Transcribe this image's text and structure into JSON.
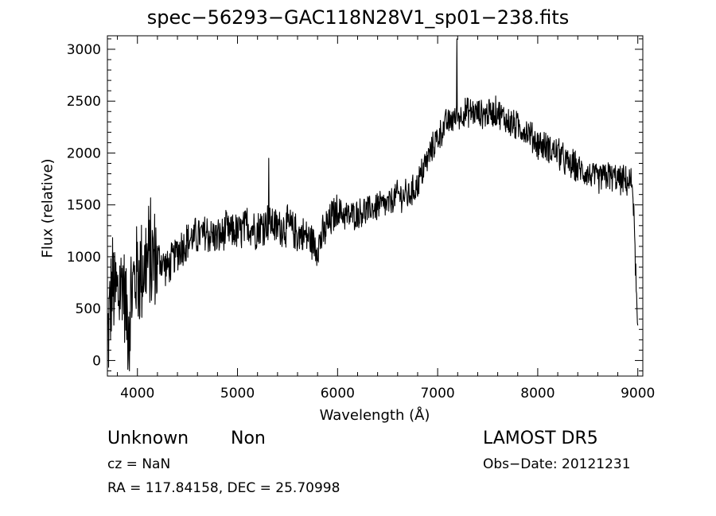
{
  "chart_data": {
    "type": "line",
    "title": "spec−56293−GAC118N28V1_sp01−238.fits",
    "xlabel": "Wavelength (Å)",
    "ylabel": "Flux (relative)",
    "xlim": [
      3700,
      9050
    ],
    "ylim": [
      -150,
      3130
    ],
    "xticks": [
      4000,
      5000,
      6000,
      7000,
      8000,
      9000
    ],
    "xtick_labels": [
      "4000",
      "5000",
      "6000",
      "7000",
      "8000",
      "9000"
    ],
    "yticks": [
      0,
      500,
      1000,
      1500,
      2000,
      2500,
      3000
    ],
    "ytick_labels": [
      "0",
      "500",
      "1000",
      "1500",
      "2000",
      "2500",
      "3000"
    ],
    "line_color": "#000000",
    "series": [
      {
        "x": [
          3700,
          3750,
          3800,
          3850,
          3900,
          3950,
          4000,
          4100,
          4200,
          4300,
          4400,
          4500,
          4600,
          4700,
          4800,
          4900,
          5000,
          5100,
          5200,
          5300,
          5400,
          5500,
          5600,
          5700,
          5800,
          5900,
          6000,
          6100,
          6200,
          6300,
          6400,
          6500,
          6600,
          6700,
          6800,
          6900,
          7000,
          7100,
          7200,
          7300,
          7400,
          7500,
          7600,
          7700,
          7800,
          7900,
          8000,
          8100,
          8200,
          8300,
          8400,
          8500,
          8600,
          8700,
          8800,
          8900,
          8950,
          9000
        ],
        "y": [
          200,
          700,
          600,
          800,
          400,
          700,
          850,
          950,
          1000,
          900,
          1050,
          1150,
          1200,
          1220,
          1180,
          1250,
          1220,
          1300,
          1250,
          1350,
          1280,
          1300,
          1220,
          1200,
          1100,
          1300,
          1450,
          1380,
          1420,
          1450,
          1480,
          1500,
          1600,
          1580,
          1700,
          1950,
          2150,
          2300,
          2350,
          2400,
          2380,
          2380,
          2400,
          2300,
          2250,
          2200,
          2100,
          2050,
          2000,
          1900,
          1850,
          1800,
          1750,
          1780,
          1750,
          1720,
          1700,
          200
        ]
      }
    ],
    "spikes": [
      {
        "x": 5310,
        "y": 1950
      },
      {
        "x": 7190,
        "y": 3100
      },
      {
        "x": 3920,
        "y": -100
      }
    ],
    "grid": false,
    "legend": "none"
  },
  "annotations": {
    "class": "Unknown",
    "subclass": "Non",
    "cz": "cz = NaN",
    "radec": "RA = 117.84158, DEC =  25.70998",
    "survey": "LAMOST DR5",
    "obs_date": "Obs−Date: 20121231"
  }
}
